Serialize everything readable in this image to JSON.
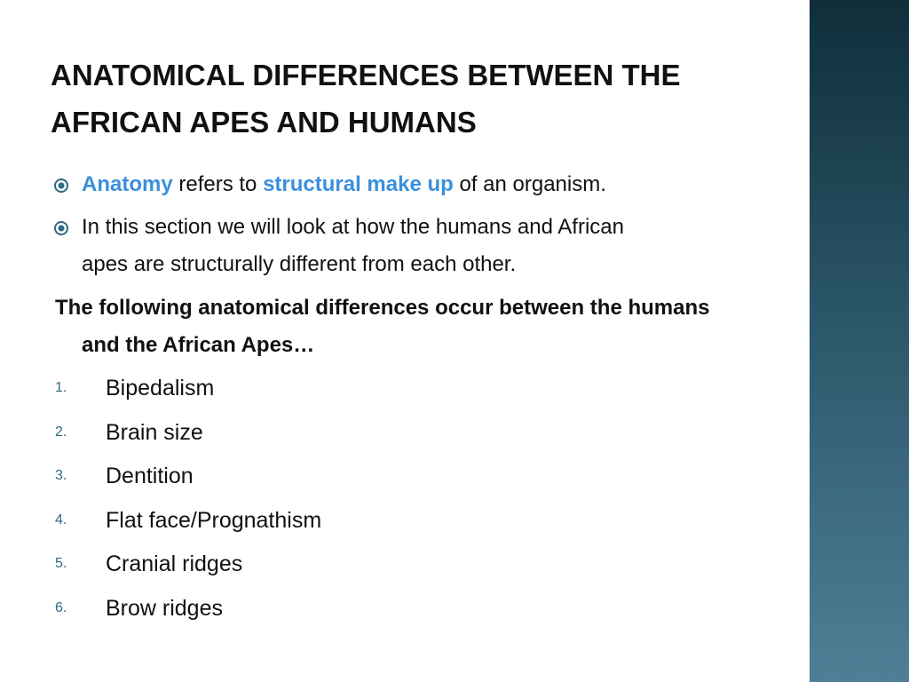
{
  "header": {
    "title": "ANATOMICAL DIFFERENCES BETWEEN THE AFRICAN APES AND HUMANS"
  },
  "bullets": [
    {
      "runs": [
        {
          "text": "Anatomy",
          "emphasis": true
        },
        {
          "text": " refers to ",
          "emphasis": false
        },
        {
          "text": "structural make up",
          "emphasis": true
        },
        {
          "text": " of an organism.",
          "emphasis": false
        }
      ]
    },
    {
      "runs": [
        {
          "text": "In this section we will look at how the humans and African apes are structurally different from each other.",
          "emphasis": false
        }
      ]
    }
  ],
  "intro": "The following anatomical differences occur between the humans and the African Apes…",
  "list": [
    {
      "number": "1.",
      "text": "Bipedalism"
    },
    {
      "number": "2.",
      "text": "Brain size"
    },
    {
      "number": "3.",
      "text": "Dentition"
    },
    {
      "number": "4.",
      "text": "Flat face/Prognathism"
    },
    {
      "number": "5.",
      "text": "Cranial ridges"
    },
    {
      "number": "6.",
      "text": "Brow ridges"
    }
  ]
}
